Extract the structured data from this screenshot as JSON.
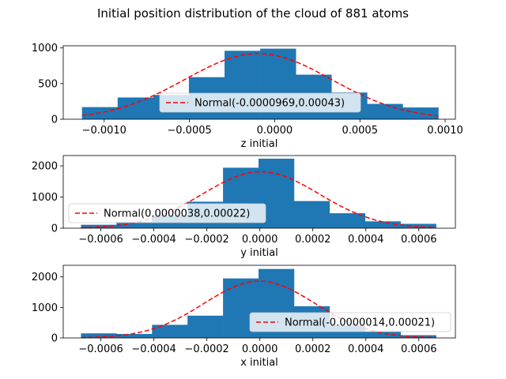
{
  "figure": {
    "title": "Initial position distribution of the cloud of 881 atoms",
    "bar_color": "#1f77b4",
    "curve_color": "#ff0000"
  },
  "chart_data": [
    {
      "type": "bar",
      "name": "panel-z",
      "xlabel": "z initial",
      "xlim": [
        -0.00124,
        0.00106
      ],
      "ylim": [
        0,
        1030
      ],
      "xticks": [
        -0.001,
        -0.0005,
        0.0,
        0.0005,
        0.001
      ],
      "xtick_labels": [
        "−0.0010",
        "−0.0005",
        "0.0000",
        "0.0005",
        "0.0010"
      ],
      "yticks": [
        0,
        500,
        1000
      ],
      "ytick_labels": [
        "0",
        "500",
        "1000"
      ],
      "bin_edges": [
        -0.00113,
        -0.000921,
        -0.000712,
        -0.000503,
        -0.000294,
        -8.5e-05,
        0.000124,
        0.000333,
        0.000542,
        0.000751,
        0.00096
      ],
      "counts": [
        170,
        305,
        340,
        590,
        960,
        990,
        625,
        375,
        215,
        165
      ],
      "fit": {
        "label": "Normal(-0.0000969,0.00043)",
        "mean": -9.69e-05,
        "std": 0.00043,
        "peak": 920
      },
      "legend_position": "center",
      "legend_anchor": [
        0.5,
        0.82
      ]
    },
    {
      "type": "bar",
      "name": "panel-y",
      "xlabel": "y initial",
      "xlim": [
        -0.000742,
        0.000738
      ],
      "ylim": [
        0,
        2330
      ],
      "xticks": [
        -0.0006,
        -0.0004,
        -0.0002,
        0.0,
        0.0002,
        0.0004,
        0.0006
      ],
      "xtick_labels": [
        "−0.0006",
        "−0.0004",
        "−0.0002",
        "0.0000",
        "0.0002",
        "0.0004",
        "0.0006"
      ],
      "yticks": [
        0,
        1000,
        2000
      ],
      "ytick_labels": [
        "0",
        "1000",
        "2000"
      ],
      "bin_edges": [
        -0.000675,
        -0.000541,
        -0.000407,
        -0.000273,
        -0.000139,
        -5e-06,
        0.000129,
        0.000263,
        0.000397,
        0.000531,
        0.000665
      ],
      "counts": [
        110,
        200,
        400,
        850,
        1940,
        2230,
        870,
        480,
        220,
        140
      ],
      "fit": {
        "label": "Normal(0.0000038,0.00022)",
        "mean": 3.8e-06,
        "std": 0.00022,
        "peak": 1810
      },
      "legend_position": "center-left",
      "legend_anchor": [
        0.0,
        0.22
      ]
    },
    {
      "type": "bar",
      "name": "panel-x",
      "xlabel": "x initial",
      "xlim": [
        -0.000742,
        0.000738
      ],
      "ylim": [
        0,
        2380
      ],
      "xticks": [
        -0.0006,
        -0.0004,
        -0.0002,
        0.0,
        0.0002,
        0.0004,
        0.0006
      ],
      "xtick_labels": [
        "−0.0006",
        "−0.0004",
        "−0.0002",
        "0.0000",
        "0.0002",
        "0.0004",
        "0.0006"
      ],
      "yticks": [
        0,
        1000,
        2000
      ],
      "ytick_labels": [
        "0",
        "1000",
        "2000"
      ],
      "bin_edges": [
        -0.000675,
        -0.000541,
        -0.000407,
        -0.000273,
        -0.000139,
        -5e-06,
        0.000129,
        0.000263,
        0.000397,
        0.000531,
        0.000665
      ],
      "counts": [
        150,
        130,
        430,
        730,
        1950,
        2260,
        1040,
        410,
        210,
        90
      ],
      "fit": {
        "label": "Normal(-0.0000014,0.00021)",
        "mean": -1.4e-06,
        "std": 0.00021,
        "peak": 1860
      },
      "legend_position": "lower-right",
      "legend_anchor": [
        1.0,
        0.2
      ]
    }
  ]
}
